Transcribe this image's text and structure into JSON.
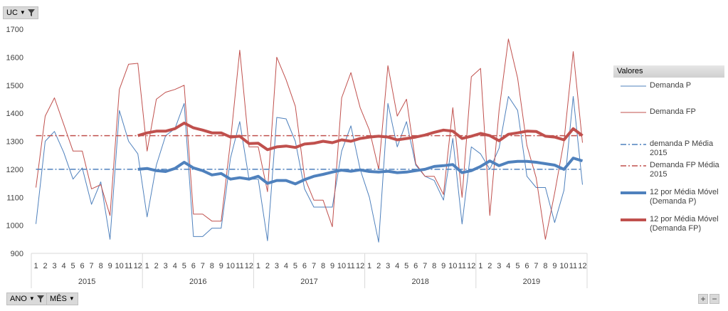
{
  "filters": {
    "value_field": "UC",
    "row_fields": [
      "ANO",
      "MÊS"
    ]
  },
  "legend": {
    "title": "Valores",
    "items": [
      {
        "label": "Demanda P",
        "color": "#4f81bd",
        "style": "thin"
      },
      {
        "label": "Demanda FP",
        "color": "#c0504d",
        "style": "thin"
      },
      {
        "label": "demanda P Média 2015",
        "color": "#4f81bd",
        "style": "dashdot"
      },
      {
        "label": "Demanda FP Média 2015",
        "color": "#c0504d",
        "style": "dashdot"
      },
      {
        "label": "12 por Média Móvel (Demanda P)",
        "color": "#4f81bd",
        "style": "thick"
      },
      {
        "label": "12 por Média Móvel (Demanda FP)",
        "color": "#c0504d",
        "style": "thick"
      }
    ]
  },
  "zoom": {
    "plus": "+",
    "minus": "−"
  },
  "chart_data": {
    "type": "line",
    "ylim": [
      900,
      1700
    ],
    "yticks": [
      900,
      1000,
      1100,
      1200,
      1300,
      1400,
      1500,
      1600,
      1700
    ],
    "years": [
      "2015",
      "2016",
      "2017",
      "2018",
      "2019"
    ],
    "months": [
      "1",
      "2",
      "3",
      "4",
      "5",
      "6",
      "7",
      "8",
      "9",
      "10",
      "11",
      "12"
    ],
    "grid": false,
    "series": [
      {
        "name": "Demanda P",
        "color": "#4f81bd",
        "style": "thin",
        "values": [
          1005,
          1300,
          1335,
          1260,
          1165,
          1205,
          1075,
          1155,
          950,
          1410,
          1300,
          1255,
          1030,
          1215,
          1320,
          1345,
          1435,
          960,
          960,
          990,
          990,
          1240,
          1370,
          1165,
          1165,
          945,
          1385,
          1380,
          1300,
          1130,
          1065,
          1065,
          1065,
          1265,
          1355,
          1200,
          1100,
          940,
          1435,
          1280,
          1370,
          1215,
          1175,
          1160,
          1090,
          1310,
          1005,
          1280,
          1255,
          1200,
          1275,
          1460,
          1410,
          1175,
          1135,
          1135,
          1010,
          1125,
          1460,
          1145
        ]
      },
      {
        "name": "Demanda FP",
        "color": "#c0504d",
        "style": "thin",
        "values": [
          1135,
          1390,
          1455,
          1360,
          1265,
          1265,
          1130,
          1145,
          1035,
          1485,
          1575,
          1578,
          1265,
          1450,
          1475,
          1485,
          1500,
          1040,
          1040,
          1015,
          1015,
          1300,
          1625,
          1280,
          1280,
          1120,
          1600,
          1520,
          1425,
          1170,
          1090,
          1090,
          995,
          1455,
          1545,
          1420,
          1340,
          1200,
          1570,
          1390,
          1450,
          1220,
          1175,
          1175,
          1110,
          1420,
          1100,
          1530,
          1560,
          1035,
          1410,
          1665,
          1525,
          1285,
          1170,
          950,
          1115,
          1300,
          1620,
          1295
        ]
      },
      {
        "name": "demanda P Média 2015",
        "color": "#4f81bd",
        "style": "dashdot",
        "constant": 1200
      },
      {
        "name": "Demanda FP Média 2015",
        "color": "#c0504d",
        "style": "dashdot",
        "constant": 1320
      },
      {
        "name": "12 por Média Móvel (Demanda P)",
        "color": "#4f81bd",
        "style": "thick",
        "start_index": 11,
        "values": [
          1200,
          1203,
          1195,
          1192,
          1203,
          1225,
          1205,
          1195,
          1180,
          1185,
          1165,
          1170,
          1165,
          1175,
          1150,
          1160,
          1160,
          1148,
          1163,
          1175,
          1182,
          1190,
          1197,
          1193,
          1198,
          1192,
          1190,
          1193,
          1188,
          1190,
          1195,
          1200,
          1210,
          1213,
          1217,
          1188,
          1195,
          1210,
          1230,
          1213,
          1225,
          1228,
          1228,
          1225,
          1220,
          1215,
          1200,
          1240,
          1230
        ]
      },
      {
        "name": "12 por Média Móvel (Demanda FP)",
        "color": "#c0504d",
        "style": "thick",
        "start_index": 11,
        "values": [
          1320,
          1330,
          1336,
          1336,
          1345,
          1365,
          1348,
          1340,
          1330,
          1330,
          1315,
          1318,
          1292,
          1293,
          1270,
          1280,
          1283,
          1278,
          1290,
          1293,
          1300,
          1295,
          1305,
          1300,
          1310,
          1315,
          1318,
          1315,
          1305,
          1310,
          1315,
          1322,
          1332,
          1340,
          1336,
          1310,
          1318,
          1328,
          1320,
          1302,
          1325,
          1330,
          1336,
          1335,
          1318,
          1315,
          1305,
          1345,
          1320
        ]
      }
    ]
  }
}
